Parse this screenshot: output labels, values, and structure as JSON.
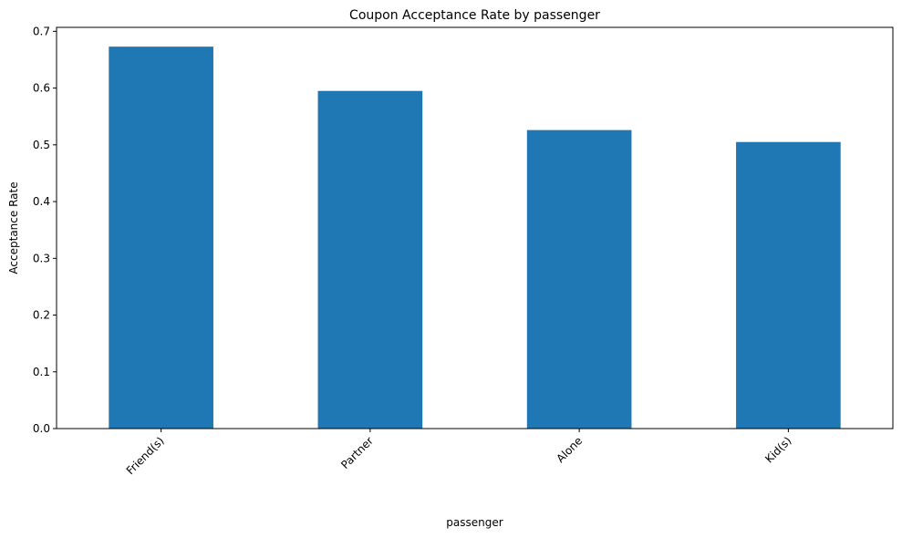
{
  "chart_data": {
    "type": "bar",
    "title": "Coupon Acceptance Rate by passenger",
    "xlabel": "passenger",
    "ylabel": "Acceptance Rate",
    "categories": [
      "Friend(s)",
      "Partner",
      "Alone",
      "Kid(s)"
    ],
    "values": [
      0.673,
      0.595,
      0.526,
      0.505
    ],
    "ylim": [
      0,
      0.707
    ],
    "yticks": [
      "0.0",
      "0.1",
      "0.2",
      "0.3",
      "0.4",
      "0.5",
      "0.6",
      "0.7"
    ],
    "bar_color": "#1f77b4",
    "grid": false
  }
}
